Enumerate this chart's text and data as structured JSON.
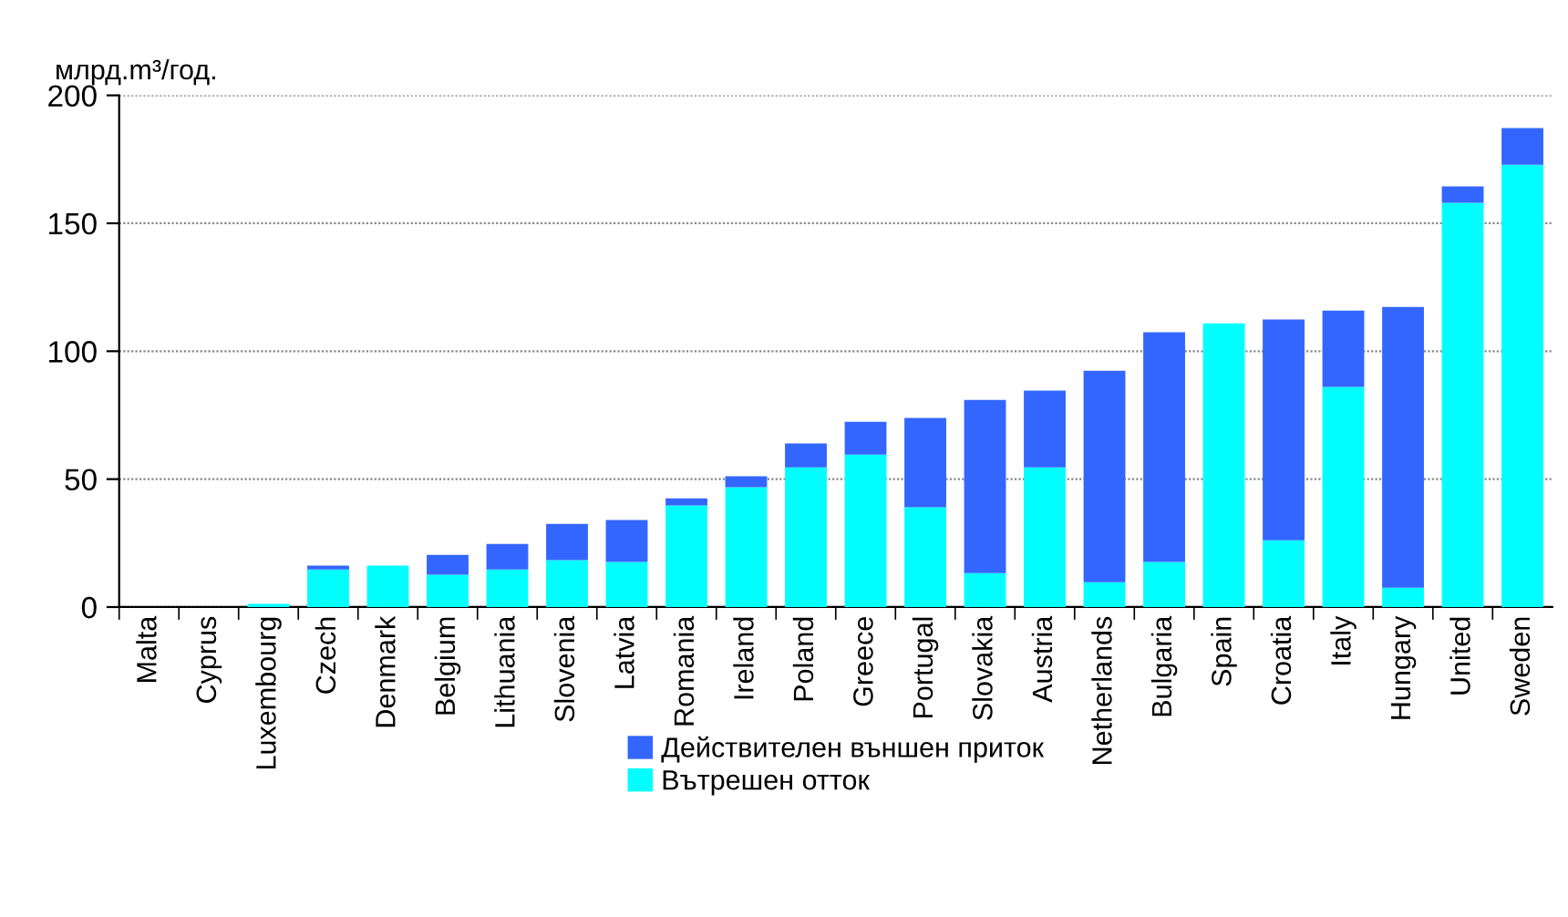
{
  "chart_data": {
    "type": "bar",
    "stacked": true,
    "ylabel": "млрд.m³/год.",
    "categories": [
      "Malta",
      "Cyprus",
      "Luxembourg",
      "Czech",
      "Denmark",
      "Belgium",
      "Lithuania",
      "Slovenia",
      "Latvia",
      "Romania",
      "Ireland",
      "Poland",
      "Greece",
      "Portugal",
      "Slovakia",
      "Austria",
      "Netherlands",
      "Bulgaria",
      "Spain",
      "Croatia",
      "Italy",
      "Hungary",
      "United",
      "Sweden"
    ],
    "series": [
      {
        "name": "Вътрешен отток",
        "color": "#00ffff",
        "values": [
          0,
          0,
          1.2,
          14.7,
          16.2,
          12.6,
          14.7,
          18.3,
          17.6,
          39.7,
          46.8,
          54.6,
          59.6,
          39.0,
          13.3,
          54.6,
          9.7,
          17.6,
          110.9,
          26.1,
          86.0,
          7.6,
          158.0,
          172.9
        ]
      },
      {
        "name": "Действителен външен приток",
        "color": "#3366ff",
        "values": [
          0,
          0,
          0,
          1.5,
          0,
          7.8,
          10.0,
          14.2,
          16.4,
          2.8,
          4.3,
          9.3,
          12.8,
          34.9,
          67.7,
          30.0,
          82.7,
          89.8,
          0,
          86.3,
          29.9,
          109.7,
          6.4,
          14.3
        ]
      }
    ],
    "ylim": [
      0,
      200
    ],
    "yticks": [
      0,
      50,
      100,
      150,
      200
    ],
    "grid": "y",
    "legend": "bottom"
  }
}
